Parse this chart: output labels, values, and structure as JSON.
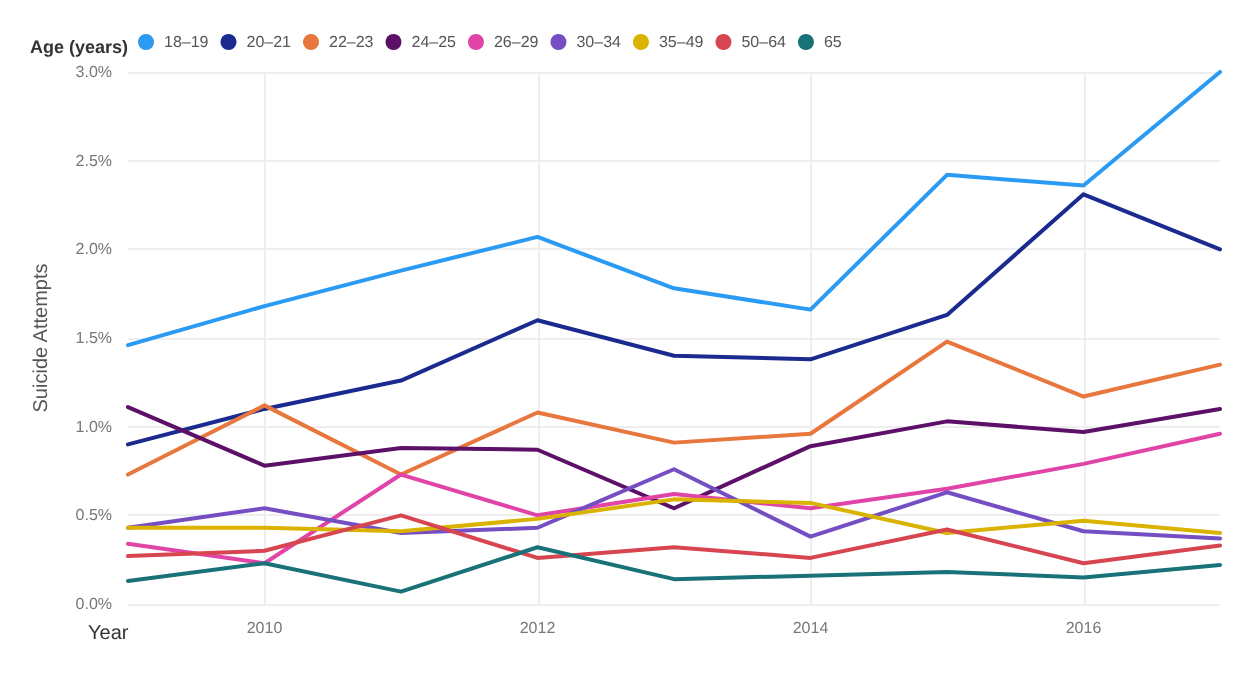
{
  "chart_data": {
    "type": "line",
    "legend_title": "Age (years)",
    "xlabel": "Year",
    "ylabel": "Suicide Attempts",
    "x": [
      2009,
      2010,
      2011,
      2012,
      2013,
      2014,
      2015,
      2016,
      2017
    ],
    "xlim": [
      2009,
      2017
    ],
    "xticks": [
      2010,
      2012,
      2014,
      2016
    ],
    "ylim": [
      0,
      3
    ],
    "yticks": [
      {
        "value": 0,
        "label": "0.0%"
      },
      {
        "value": 0.5,
        "label": "0.5%"
      },
      {
        "value": 1,
        "label": "1.0%"
      },
      {
        "value": 1.5,
        "label": "1.5%"
      },
      {
        "value": 2,
        "label": "2.0%"
      },
      {
        "value": 2.5,
        "label": "2.5%"
      },
      {
        "value": 3,
        "label": "3.0%"
      }
    ],
    "grid": true,
    "legend": "top left",
    "marker": "none",
    "line_style": "solid",
    "series": [
      {
        "name": "18–19",
        "color": "#2b9af3",
        "values": [
          1.46,
          1.68,
          1.88,
          2.07,
          1.78,
          1.66,
          2.42,
          2.36,
          3.0
        ]
      },
      {
        "name": "20–21",
        "color": "#1a2a8f",
        "values": [
          0.9,
          1.1,
          1.26,
          1.6,
          1.4,
          1.38,
          1.63,
          2.31,
          2.0
        ]
      },
      {
        "name": "22–23",
        "color": "#e8773d",
        "values": [
          0.73,
          1.12,
          0.73,
          1.08,
          0.91,
          0.96,
          1.48,
          1.17,
          1.35
        ]
      },
      {
        "name": "24–25",
        "color": "#5c1067",
        "values": [
          1.11,
          0.78,
          0.88,
          0.87,
          0.54,
          0.89,
          1.03,
          0.97,
          1.1
        ]
      },
      {
        "name": "26–29",
        "color": "#e044a7",
        "values": [
          0.34,
          0.23,
          0.73,
          0.5,
          0.62,
          0.54,
          0.65,
          0.79,
          0.96
        ]
      },
      {
        "name": "30–34",
        "color": "#744ec2",
        "values": [
          0.43,
          0.54,
          0.4,
          0.43,
          0.76,
          0.38,
          0.63,
          0.41,
          0.37
        ]
      },
      {
        "name": "35–49",
        "color": "#d9b300",
        "values": [
          0.43,
          0.43,
          0.41,
          0.48,
          0.59,
          0.57,
          0.4,
          0.47,
          0.4
        ]
      },
      {
        "name": "50–64",
        "color": "#d64550",
        "values": [
          0.27,
          0.3,
          0.5,
          0.26,
          0.32,
          0.26,
          0.42,
          0.23,
          0.33
        ]
      },
      {
        "name": "65",
        "color": "#197278",
        "values": [
          0.13,
          0.23,
          0.07,
          0.32,
          0.14,
          0.16,
          0.18,
          0.15,
          0.22
        ]
      }
    ]
  }
}
